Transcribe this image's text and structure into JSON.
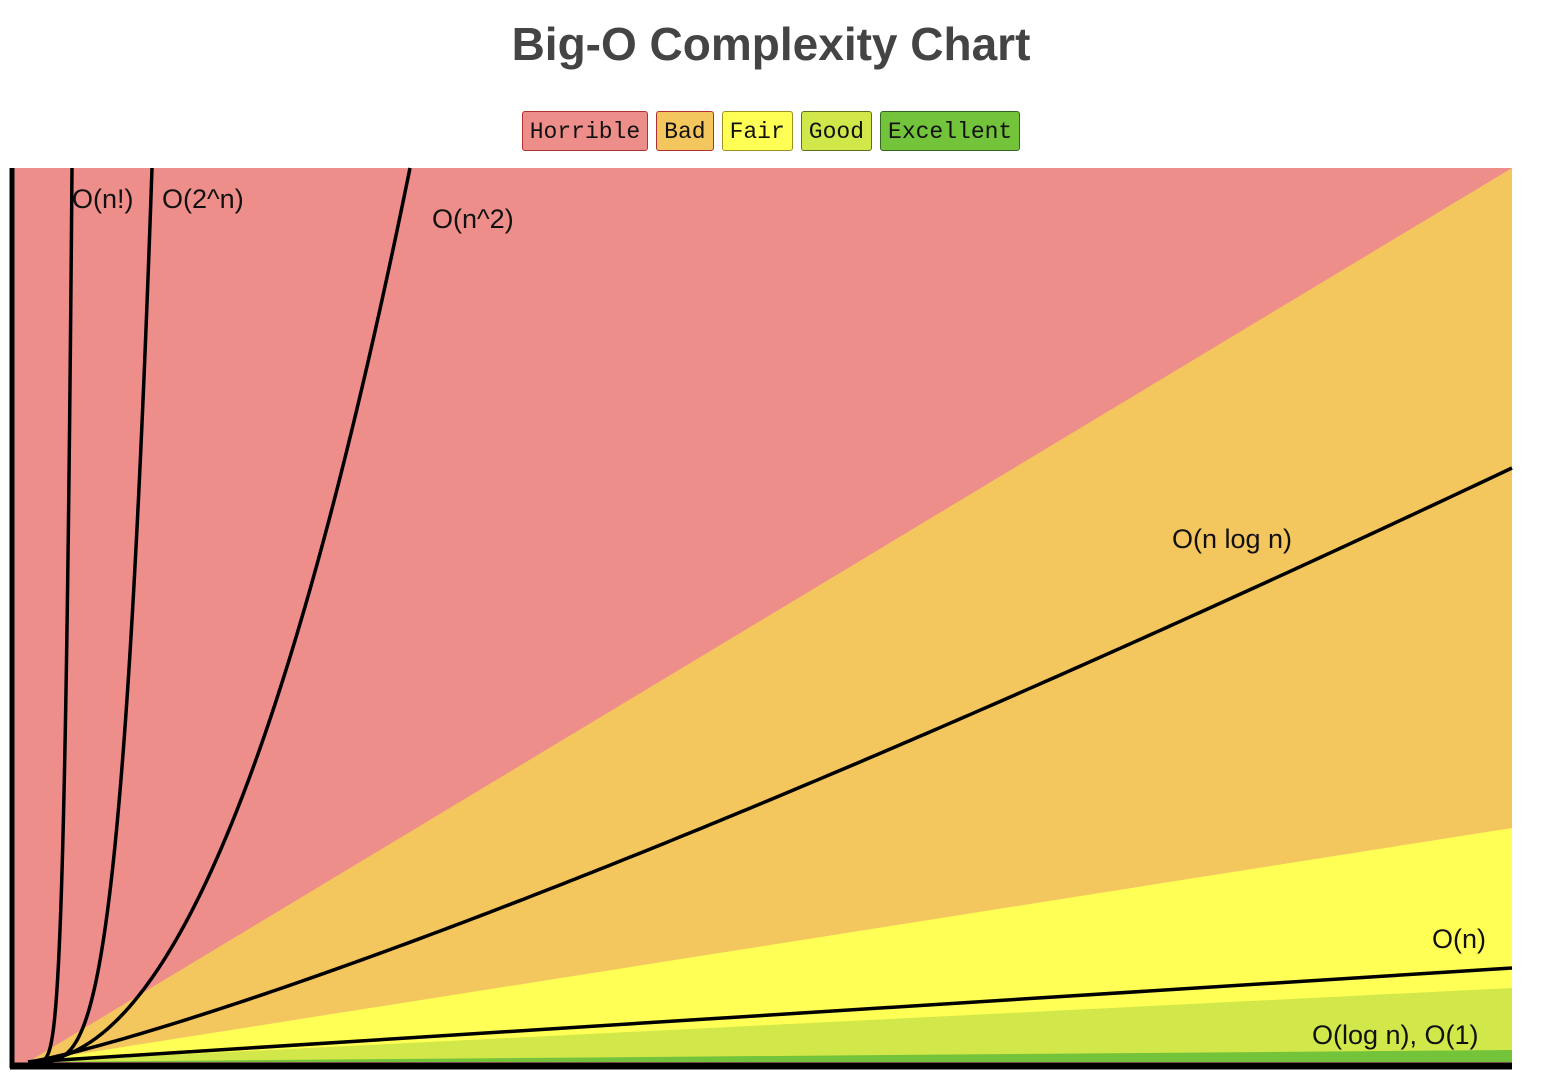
{
  "colors": {
    "horrible": "#ee8e8a",
    "bad": "#f4c65e",
    "fair": "#ffff55",
    "good": "#d1e74a",
    "excellent": "#73c33b",
    "horrible_border": "#b03030",
    "bad_border": "#b03030",
    "fair_border": "#a09020",
    "good_border": "#607020",
    "excellent_border": "#336622"
  },
  "chart_data": {
    "type": "area",
    "title": "Big-O Complexity Chart",
    "xlabel": "",
    "ylabel": "",
    "grid": false,
    "legend_position": "top-center",
    "legend": [
      {
        "label": "Horrible",
        "color_key": "horrible"
      },
      {
        "label": "Bad",
        "color_key": "bad"
      },
      {
        "label": "Fair",
        "color_key": "fair"
      },
      {
        "label": "Good",
        "color_key": "good"
      },
      {
        "label": "Excellent",
        "color_key": "excellent"
      }
    ],
    "curves": [
      {
        "label": "O(n!)",
        "fn": "factorial"
      },
      {
        "label": "O(2^n)",
        "fn": "exponential"
      },
      {
        "label": "O(n^2)",
        "fn": "quadratic"
      },
      {
        "label": "O(n log n)",
        "fn": "nlogn"
      },
      {
        "label": "O(n)",
        "fn": "linear"
      },
      {
        "label": "O(log n), O(1)",
        "fn": "logarithmic"
      }
    ]
  }
}
